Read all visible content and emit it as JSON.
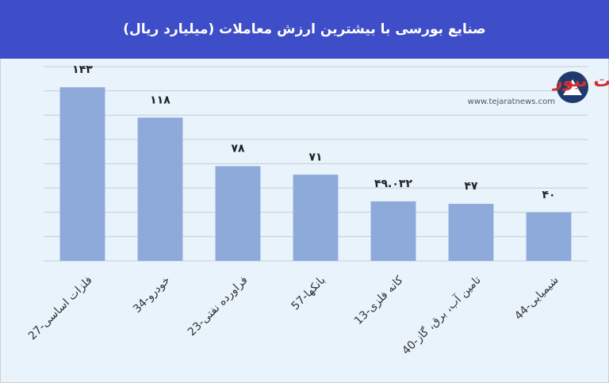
{
  "chart_data": {
    "type": "bar",
    "title": "صنایع بورسی با بیشترین ارزش معاملات  (میلیارد ریال)",
    "categories": [
      "27-فلزات اساسی",
      "34-خودرو",
      "23-فراورده نفتی",
      "57-بانکها",
      "13-کانه فلزی",
      "40-تامین آب، برق، گاز",
      "44-شیمیایی"
    ],
    "values": [
      143,
      118,
      78,
      71,
      49.032,
      47,
      40
    ],
    "value_labels": [
      "۱۴۳",
      "۱۱۸",
      "۷۸",
      "۷۱",
      "۴۹.۰۳۲",
      "۴۷",
      "۴۰"
    ],
    "color": "#8eaadb",
    "ylim": [
      0,
      160
    ],
    "yticks": [
      0,
      20,
      40,
      60,
      80,
      100,
      120,
      140,
      160
    ],
    "grid": true
  },
  "watermark": {
    "name": "تجارت نیوز",
    "url": "www.tejaratnews.com"
  }
}
